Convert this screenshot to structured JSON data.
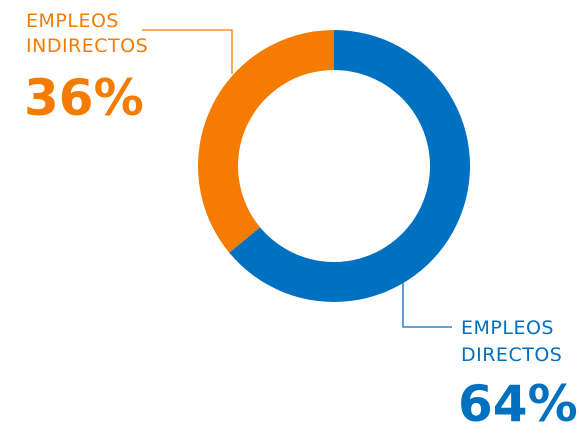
{
  "colors": {
    "directos": "#0070c0",
    "indirectos": "#f57c00"
  },
  "labels": {
    "indirectos": {
      "line1": "EMPLEOS",
      "line2": "INDIRECTOS",
      "pct": "36%"
    },
    "directos": {
      "line1": "EMPLEOS",
      "line2": "DIRECTOS",
      "pct": "64%"
    }
  },
  "chart_data": {
    "type": "pie",
    "variant": "donut",
    "slices": [
      {
        "label": "EMPLEOS DIRECTOS",
        "value": 64,
        "color": "#0070c0"
      },
      {
        "label": "EMPLEOS INDIRECTOS",
        "value": 36,
        "color": "#f57c00"
      }
    ],
    "title": "",
    "legend": "none"
  }
}
